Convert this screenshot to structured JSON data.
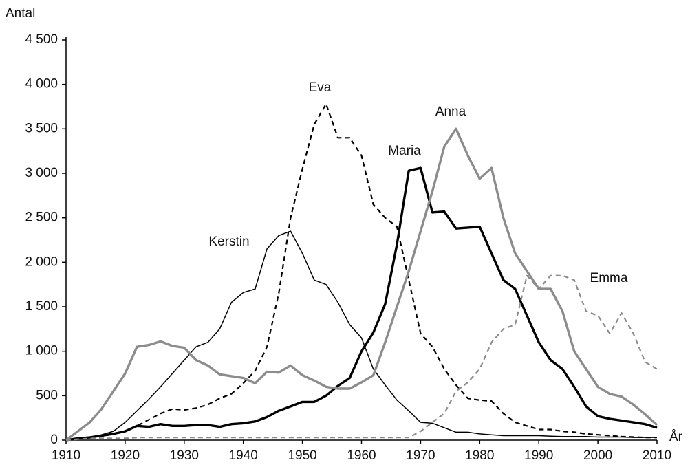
{
  "chart_data": {
    "type": "line",
    "y_label": "Antal",
    "x_label": "År",
    "xlim": [
      1910,
      2010
    ],
    "xticks": [
      1910,
      1920,
      1930,
      1940,
      1950,
      1960,
      1970,
      1980,
      1990,
      2000,
      2010
    ],
    "ylim": [
      0,
      4500
    ],
    "yticks": [
      0,
      500,
      {
        "value": 1000,
        "label": "1 000"
      },
      {
        "value": 1500,
        "label": "1 500"
      },
      {
        "value": 2000,
        "label": "2 000"
      },
      {
        "value": 2500,
        "label": "2 500"
      },
      {
        "value": 3000,
        "label": "3 000"
      },
      {
        "value": 3500,
        "label": "3 500"
      },
      {
        "value": 4000,
        "label": "4 000"
      },
      {
        "value": 4500,
        "label": "4 500"
      }
    ],
    "grid": false,
    "x": [
      1910,
      1912,
      1914,
      1916,
      1918,
      1920,
      1922,
      1924,
      1926,
      1928,
      1930,
      1932,
      1934,
      1936,
      1938,
      1940,
      1942,
      1944,
      1946,
      1948,
      1950,
      1952,
      1954,
      1956,
      1958,
      1960,
      1962,
      1964,
      1966,
      1968,
      1970,
      1972,
      1974,
      1976,
      1978,
      1980,
      1982,
      1984,
      1986,
      1988,
      1990,
      1992,
      1994,
      1996,
      1998,
      2000,
      2002,
      2004,
      2006,
      2008,
      2010
    ],
    "series": [
      {
        "name": "Kerstin",
        "color": "#000000",
        "style": "solid",
        "weight": "thin",
        "values": [
          0,
          15,
          35,
          60,
          100,
          200,
          330,
          460,
          600,
          750,
          900,
          1050,
          1100,
          1250,
          1550,
          1660,
          1700,
          2150,
          2300,
          2350,
          2100,
          1800,
          1750,
          1550,
          1300,
          1150,
          800,
          620,
          450,
          330,
          200,
          190,
          140,
          90,
          90,
          70,
          60,
          50,
          50,
          50,
          50,
          45,
          40,
          40,
          40,
          35,
          35,
          35,
          30,
          30,
          30
        ]
      },
      {
        "name": "Eva",
        "color": "#000000",
        "style": "dashed",
        "weight": "medium",
        "values": [
          0,
          10,
          20,
          40,
          70,
          100,
          160,
          230,
          300,
          350,
          340,
          360,
          400,
          470,
          520,
          640,
          780,
          1050,
          1650,
          2500,
          3050,
          3550,
          3780,
          3400,
          3400,
          3200,
          2650,
          2500,
          2400,
          1800,
          1200,
          1050,
          800,
          620,
          470,
          450,
          440,
          300,
          200,
          160,
          120,
          120,
          100,
          90,
          70,
          60,
          50,
          40,
          35,
          30,
          30
        ]
      },
      {
        "name": "Maria",
        "color": "#000000",
        "style": "solid",
        "weight": "thick",
        "values": [
          0,
          20,
          30,
          50,
          70,
          100,
          160,
          150,
          180,
          160,
          160,
          170,
          170,
          150,
          180,
          190,
          210,
          260,
          330,
          380,
          430,
          430,
          500,
          610,
          700,
          1000,
          1210,
          1530,
          2200,
          3030,
          3060,
          2560,
          2570,
          2380,
          2390,
          2400,
          2100,
          1800,
          1700,
          1400,
          1100,
          900,
          800,
          600,
          380,
          270,
          240,
          220,
          200,
          180,
          140
        ]
      },
      {
        "name": "Anna",
        "color": "#8c8c8c",
        "style": "solid",
        "weight": "thick",
        "values": [
          0,
          100,
          200,
          350,
          550,
          750,
          1050,
          1070,
          1110,
          1060,
          1040,
          900,
          840,
          740,
          720,
          700,
          640,
          770,
          760,
          840,
          730,
          670,
          600,
          580,
          580,
          650,
          730,
          1100,
          1500,
          1900,
          2350,
          2800,
          3300,
          3500,
          3200,
          2940,
          3060,
          2500,
          2100,
          1900,
          1700,
          1700,
          1450,
          1000,
          800,
          600,
          520,
          490,
          400,
          290,
          170
        ]
      },
      {
        "name": "Emma",
        "color": "#8c8c8c",
        "style": "dashed",
        "weight": "medium",
        "values": [
          0,
          10,
          20,
          20,
          20,
          20,
          30,
          30,
          30,
          30,
          30,
          30,
          30,
          30,
          30,
          30,
          30,
          30,
          30,
          30,
          30,
          30,
          30,
          30,
          30,
          30,
          30,
          30,
          30,
          30,
          100,
          200,
          300,
          550,
          650,
          800,
          1100,
          1250,
          1300,
          1850,
          1700,
          1850,
          1850,
          1800,
          1450,
          1400,
          1200,
          1430,
          1200,
          880,
          800
        ]
      }
    ]
  }
}
